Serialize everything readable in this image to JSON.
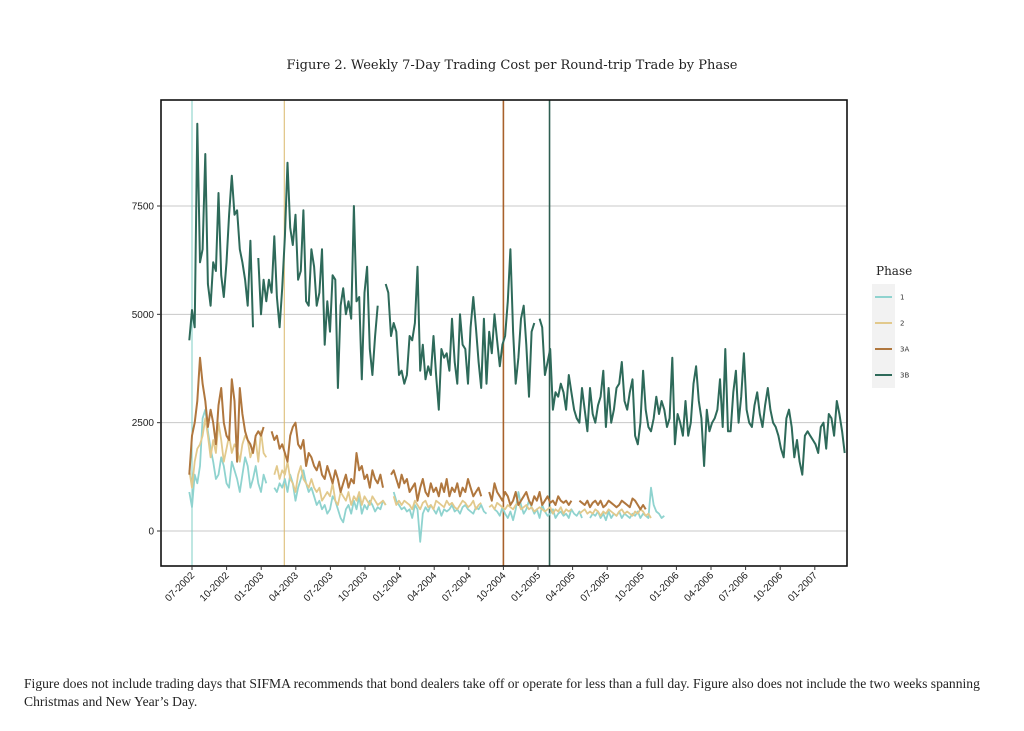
{
  "chart_data": {
    "type": "line",
    "title": "Figure 2. Weekly 7-Day Trading Cost per Round-trip Trade by Phase",
    "xlabel": "",
    "ylabel": "",
    "x_start": "2002-06-24",
    "x_interval": "weekly",
    "xlim": [
      "2002-06",
      "2007-01"
    ],
    "ylim": [
      -600,
      10300
    ],
    "yticks": [
      0,
      2500,
      5000,
      7500
    ],
    "ytick_labels": [
      "0",
      "2500",
      "5000",
      "7500"
    ],
    "xtick_labels": [
      "07-2002",
      "10-2002",
      "01-2003",
      "04-2003",
      "07-2003",
      "10-2003",
      "01-2004",
      "04-2004",
      "07-2004",
      "10-2004",
      "01-2005",
      "04-2005",
      "07-2005",
      "10-2005",
      "01-2006",
      "04-2006",
      "07-2006",
      "10-2006",
      "01-2007"
    ],
    "grid": "horizontal",
    "legend": {
      "title": "Phase",
      "placement": "right"
    },
    "phase_start_lines": [
      {
        "phase": "1",
        "date": "2002-07"
      },
      {
        "phase": "2",
        "date": "2003-03"
      },
      {
        "phase": "3A",
        "date": "2004-10"
      },
      {
        "phase": "3B",
        "date": "2005-02"
      }
    ],
    "series": [
      {
        "name": "1",
        "color": "#8fd3cf",
        "values": [
          900,
          550,
          1300,
          1100,
          1500,
          2600,
          2800,
          2300,
          1900,
          1600,
          1200,
          1300,
          1700,
          1500,
          1100,
          1000,
          1600,
          1400,
          1200,
          900,
          1300,
          1700,
          1500,
          1000,
          1200,
          1500,
          1100,
          900,
          1300,
          1100,
          null,
          null,
          1000,
          900,
          1100,
          1000,
          1200,
          900,
          1300,
          1100,
          700,
          1000,
          1200,
          1400,
          1100,
          900,
          1000,
          800,
          600,
          700,
          500,
          600,
          400,
          500,
          800,
          700,
          500,
          300,
          200,
          500,
          600,
          400,
          700,
          500,
          800,
          400,
          600,
          500,
          700,
          600,
          450,
          550,
          500,
          700,
          600,
          null,
          null,
          900,
          700,
          600,
          500,
          550,
          450,
          500,
          300,
          600,
          500,
          -250,
          400,
          550,
          450,
          600,
          500,
          400,
          550,
          350,
          500,
          450,
          500,
          600,
          450,
          500,
          400,
          550,
          600,
          500,
          450,
          400,
          550,
          500,
          600,
          450,
          400,
          null,
          null,
          500,
          450,
          350,
          550,
          400,
          300,
          450,
          250,
          500,
          900,
          600,
          400,
          500,
          700,
          550,
          400,
          500,
          300,
          600,
          450,
          350,
          400,
          500,
          300,
          400,
          450,
          350,
          400,
          300,
          500,
          400,
          350,
          450,
          300,
          null,
          null,
          300,
          400,
          350,
          450,
          300,
          400,
          250,
          450,
          300,
          400,
          350,
          450,
          300,
          400,
          350,
          300,
          400,
          350,
          450,
          300,
          400,
          350,
          300,
          1000,
          600,
          450,
          400,
          300,
          350
        ]
      },
      {
        "name": "2",
        "color": "#e2c98c",
        "values": [
          1400,
          1000,
          1600,
          1900,
          2000,
          2200,
          2600,
          2200,
          1700,
          2100,
          1800,
          2500,
          2100,
          1600,
          1900,
          2200,
          1800,
          2000,
          1900,
          1600,
          2000,
          2200,
          2100,
          1700,
          1900,
          2100,
          1600,
          2300,
          1800,
          1700,
          null,
          null,
          1300,
          1500,
          1200,
          1400,
          1300,
          1600,
          1200,
          1100,
          900,
          1300,
          1500,
          1200,
          1100,
          1000,
          1200,
          1000,
          900,
          1000,
          700,
          800,
          900,
          800,
          1100,
          700,
          600,
          900,
          800,
          700,
          900,
          600,
          800,
          700,
          900,
          600,
          800,
          700,
          600,
          800,
          700,
          600,
          650,
          700,
          600,
          null,
          null,
          800,
          600,
          700,
          600,
          700,
          650,
          600,
          500,
          700,
          600,
          500,
          650,
          700,
          550,
          600,
          500,
          700,
          650,
          600,
          550,
          700,
          600,
          650,
          550,
          500,
          600,
          700,
          650,
          550,
          600,
          700,
          500,
          600,
          650,
          null,
          null,
          550,
          600,
          500,
          650,
          600,
          550,
          500,
          600,
          550,
          500,
          600,
          650,
          500,
          550,
          600,
          500,
          550,
          450,
          500,
          550,
          500,
          450,
          500,
          550,
          400,
          500,
          450,
          550,
          400,
          500,
          450,
          500,
          null,
          null,
          400,
          450,
          500,
          400,
          450,
          400,
          500,
          450,
          350,
          450,
          400,
          500,
          450,
          400,
          350,
          450,
          500,
          400,
          450,
          400,
          350,
          450,
          400,
          500,
          450,
          350,
          400,
          300
        ]
      },
      {
        "name": "3A",
        "color": "#b0773e",
        "values": [
          1300,
          2200,
          2500,
          3000,
          4000,
          3400,
          3000,
          2400,
          2800,
          2500,
          2000,
          2900,
          3300,
          2500,
          2200,
          2100,
          3500,
          3000,
          1600,
          3300,
          2700,
          2300,
          2100,
          2000,
          1800,
          2200,
          2300,
          2200,
          2400,
          null,
          null,
          2300,
          2100,
          2200,
          1900,
          2000,
          1800,
          1600,
          2200,
          2400,
          2500,
          2000,
          1900,
          2100,
          1500,
          1800,
          1700,
          1500,
          1400,
          1600,
          1300,
          1200,
          1500,
          1300,
          1100,
          1400,
          1200,
          900,
          1100,
          1300,
          1000,
          1200,
          1100,
          1800,
          1400,
          1500,
          1200,
          1300,
          1000,
          1400,
          1200,
          1100,
          1300,
          1000,
          null,
          null,
          1300,
          1400,
          1200,
          1000,
          1300,
          1100,
          1200,
          900,
          1000,
          1100,
          700,
          1000,
          1200,
          900,
          800,
          1100,
          900,
          1000,
          800,
          1100,
          900,
          1200,
          800,
          1000,
          900,
          1100,
          800,
          1000,
          900,
          1200,
          1000,
          800,
          900,
          1000,
          800,
          null,
          null,
          900,
          700,
          1100,
          900,
          800,
          700,
          900,
          800,
          600,
          700,
          900,
          600,
          700,
          800,
          900,
          700,
          600,
          800,
          700,
          900,
          600,
          700,
          800,
          650,
          700,
          600,
          800,
          700,
          650,
          700,
          600,
          700,
          null,
          null,
          700,
          650,
          600,
          700,
          550,
          650,
          700,
          600,
          700,
          550,
          600,
          700,
          650,
          600,
          550,
          600,
          700,
          650,
          600,
          550,
          750,
          700,
          600,
          500,
          600,
          500
        ]
      },
      {
        "name": "3B",
        "color": "#2e6a5a",
        "values": [
          4400,
          5100,
          4700,
          9400,
          6200,
          6500,
          8700,
          5700,
          5200,
          6200,
          6000,
          7800,
          5900,
          5400,
          6200,
          7300,
          8200,
          7300,
          7400,
          6500,
          6200,
          5800,
          5200,
          6700,
          4700,
          null,
          6300,
          5000,
          5800,
          5300,
          5800,
          5500,
          6800,
          5400,
          4700,
          5600,
          6800,
          8500,
          7000,
          6600,
          7300,
          5800,
          6000,
          7400,
          5300,
          5200,
          6500,
          6100,
          5200,
          5500,
          6500,
          4300,
          5300,
          4600,
          5900,
          5800,
          3300,
          5200,
          5600,
          5000,
          5300,
          4900,
          7500,
          5300,
          5400,
          3500,
          5500,
          6100,
          4200,
          3600,
          4500,
          5200,
          null,
          null,
          5700,
          5500,
          4500,
          4800,
          4600,
          3600,
          3700,
          3400,
          3600,
          4500,
          4400,
          4800,
          6100,
          3700,
          4300,
          3500,
          3800,
          3600,
          4500,
          3600,
          2800,
          4200,
          4000,
          4100,
          3700,
          4900,
          3900,
          3400,
          5000,
          4300,
          4200,
          3400,
          4700,
          5400,
          4700,
          3900,
          3300,
          4900,
          3400,
          4600,
          4100,
          5000,
          4400,
          3800,
          4300,
          4500,
          5300,
          6500,
          4600,
          3400,
          4000,
          4900,
          5200,
          4300,
          3100,
          4600,
          4800,
          null,
          4900,
          4700,
          3600,
          3900,
          4200,
          2800,
          3200,
          3100,
          3400,
          3200,
          2800,
          3600,
          3200,
          2800,
          2600,
          2500,
          3300,
          2800,
          2300,
          3300,
          2700,
          2500,
          2900,
          3100,
          3700,
          2400,
          3300,
          2500,
          2800,
          3300,
          3400,
          3900,
          3000,
          2800,
          3200,
          3500,
          2200,
          2000,
          2500,
          3700,
          2800,
          2400,
          2300,
          2600,
          3100,
          2700,
          3000,
          2800,
          2400,
          2600,
          4000,
          2000,
          2700,
          2500,
          2200,
          3000,
          2200,
          2500,
          3400,
          3800,
          3000,
          2600,
          1500,
          2800,
          2300,
          2500,
          2600,
          2800,
          3500,
          2400,
          4200,
          2300,
          2300,
          3200,
          3700,
          2500,
          3100,
          4100,
          2800,
          2500,
          2400,
          2900,
          3200,
          2700,
          2400,
          2900,
          3300,
          2800,
          2500,
          2400,
          2200,
          1900,
          1700,
          2600,
          2800,
          2400,
          1700,
          2100,
          1600,
          1300,
          2200,
          2300,
          2200,
          2100,
          2000,
          1800,
          2400,
          2500,
          1900,
          2700,
          2600,
          2200,
          3000,
          2700,
          2300,
          1800
        ]
      }
    ]
  },
  "caption": "Figure does not include trading days that SIFMA recommends that bond dealers take off or operate for less than a full day.  Figure also does not include the two weeks spanning Christmas and New Year’s Day."
}
